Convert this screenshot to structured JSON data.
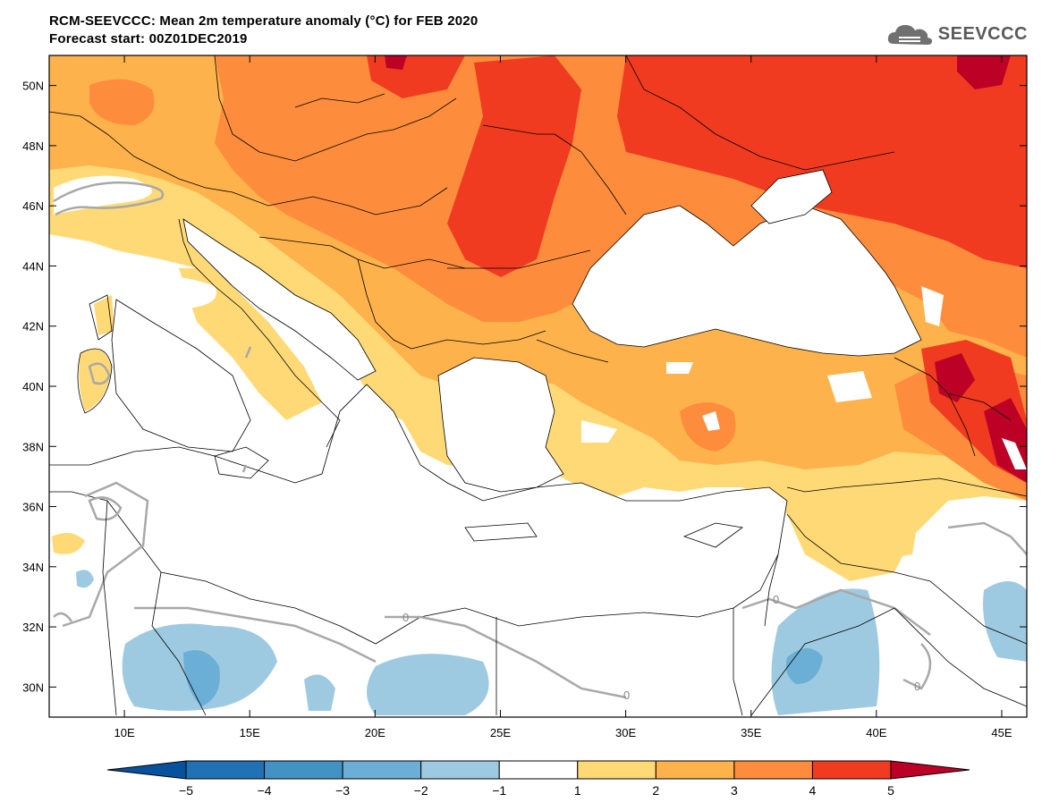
{
  "header": {
    "title_line1": "RCM-SEEVCCC: Mean 2m temperature anomaly (°C) for FEB 2020",
    "title_line2": "Forecast start: 00Z01DEC2019"
  },
  "logo": {
    "text": "SEEVCCC",
    "icon": "cloud-icon"
  },
  "map": {
    "lon_range": [
      7,
      46
    ],
    "lat_range": [
      29,
      51
    ],
    "lat_labels": [
      "30N",
      "32N",
      "34N",
      "36N",
      "38N",
      "40N",
      "42N",
      "44N",
      "46N",
      "48N",
      "50N"
    ],
    "lat_values": [
      30,
      32,
      34,
      36,
      38,
      40,
      42,
      44,
      46,
      48,
      50
    ],
    "lon_labels": [
      "10E",
      "15E",
      "20E",
      "25E",
      "30E",
      "35E",
      "40E",
      "45E"
    ],
    "lon_values": [
      10,
      15,
      20,
      25,
      30,
      35,
      40,
      45
    ],
    "contour_label": "0"
  },
  "colorbar": {
    "labels": [
      "−5",
      "−4",
      "−3",
      "−2",
      "−1",
      "1",
      "2",
      "3",
      "4",
      "5"
    ],
    "colors": [
      "#08519c",
      "#2171b5",
      "#4292c6",
      "#6baed6",
      "#9ecae1",
      "#ffffff",
      "#fed976",
      "#feb24c",
      "#fd8d3c",
      "#f03b20",
      "#bd0026"
    ]
  }
}
